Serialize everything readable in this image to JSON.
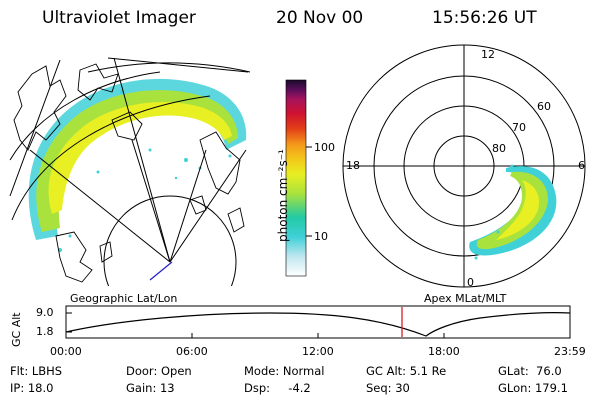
{
  "header": {
    "instrument": "Ultraviolet Imager",
    "date": "20 Nov 00",
    "time": "15:56:26 UT"
  },
  "colorbar": {
    "unit_label": "photon cm⁻²s⁻¹",
    "ticks": [
      "100",
      "10"
    ],
    "scale": "log"
  },
  "geo_panel": {
    "caption": "Geographic Lat/Lon"
  },
  "polar_panel": {
    "caption": "Apex MLat/MLT",
    "mlt_labels": [
      "12",
      "18",
      "6",
      "0"
    ],
    "lat_labels": [
      "60",
      "70",
      "80"
    ]
  },
  "timeline": {
    "ylabel": "GC Alt",
    "y_ticks": [
      "9.0",
      "1.8"
    ],
    "x_ticks": [
      "00:00",
      "06:00",
      "12:00",
      "18:00",
      "23:59"
    ],
    "current_time_hours": 16.0,
    "marker_color": "#d81e1e"
  },
  "info": {
    "filter": "Flt: LBHS",
    "ip": "IP: 18.0",
    "door": "Door: Open",
    "gain": "Gain: 13",
    "mode": "Mode: Normal",
    "dsp": "Dsp:     -4.2",
    "gc_alt": "GC Alt: 5.1 Re",
    "seq": "Seq: 30",
    "glat": "GLat:  76.0",
    "glon": "GLon: 179.1"
  },
  "colors": {
    "palette": [
      "#ffffff",
      "#bfe6ef",
      "#3fd0d8",
      "#23c9a4",
      "#a9e23c",
      "#e8ef22",
      "#f3c61a",
      "#f59a1a",
      "#e24016",
      "#cf1232",
      "#a8135a",
      "#5a0e5c",
      "#1a0a2a"
    ]
  }
}
